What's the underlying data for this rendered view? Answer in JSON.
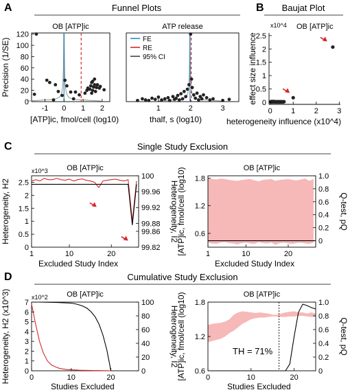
{
  "figure": {
    "panels": [
      {
        "letter": "A",
        "title": "Funnel Plots"
      },
      {
        "letter": "B",
        "title": "Baujat Plot"
      },
      {
        "letter": "C",
        "title": "Single Study Exclusion"
      },
      {
        "letter": "D",
        "title": "Cumulative Study Exclusion"
      }
    ]
  },
  "colors": {
    "red": "#d62728",
    "pink": "#f7b8b8",
    "blue": "#2a8fc4",
    "black": "#000000",
    "grey": "#888888"
  },
  "chart_data": [
    {
      "id": "A1",
      "type": "scatter",
      "title": "OB [ATP]ic",
      "xlabel": "[ATP]ic, fmol/cell (log10)",
      "ylabel": "Precision (1/SE)",
      "xlim": [
        -1.7,
        2.4
      ],
      "ylim": [
        0,
        122
      ],
      "xticks": [
        -1,
        0,
        1,
        2
      ],
      "yticks": [
        0,
        20,
        40,
        60,
        80,
        100,
        120
      ],
      "fe": 0.0,
      "re": 0.9,
      "points": [
        [
          -1.45,
          120
        ],
        [
          -1.55,
          13
        ],
        [
          -0.9,
          38
        ],
        [
          -0.75,
          34
        ],
        [
          -0.45,
          30
        ],
        [
          -0.3,
          18
        ],
        [
          -0.1,
          11
        ],
        [
          0.15,
          28
        ],
        [
          0.05,
          38
        ],
        [
          0.35,
          17
        ],
        [
          -0.55,
          3
        ],
        [
          0.5,
          5
        ],
        [
          0.8,
          12
        ],
        [
          1.1,
          15
        ],
        [
          1.2,
          20
        ],
        [
          1.25,
          24
        ],
        [
          1.35,
          22
        ],
        [
          1.4,
          28
        ],
        [
          1.45,
          34
        ],
        [
          1.5,
          36
        ],
        [
          1.5,
          20
        ],
        [
          1.55,
          26
        ],
        [
          1.6,
          30
        ],
        [
          1.6,
          40
        ],
        [
          1.65,
          18
        ],
        [
          1.7,
          25
        ],
        [
          1.75,
          30
        ],
        [
          1.85,
          24
        ],
        [
          1.9,
          27
        ],
        [
          2.1,
          21
        ],
        [
          1.45,
          15
        ],
        [
          0.6,
          17
        ]
      ]
    },
    {
      "id": "A2",
      "type": "scatter",
      "title": "ATP release",
      "xlabel": "thalf, s (log10)",
      "legend": [
        "FE",
        "RE",
        "95% CI"
      ],
      "xlim": [
        0,
        3.5
      ],
      "ylim": [
        0,
        122
      ],
      "xticks": [
        1,
        2,
        3
      ],
      "fe": 1.98,
      "re": 2.02,
      "points": [
        [
          0.35,
          2
        ],
        [
          0.5,
          5
        ],
        [
          0.6,
          3
        ],
        [
          0.7,
          2
        ],
        [
          0.8,
          6
        ],
        [
          0.9,
          4
        ],
        [
          1.0,
          8
        ],
        [
          1.1,
          3
        ],
        [
          1.2,
          5
        ],
        [
          1.3,
          7
        ],
        [
          1.35,
          2
        ],
        [
          1.45,
          9
        ],
        [
          1.5,
          4
        ],
        [
          1.55,
          6
        ],
        [
          1.6,
          11
        ],
        [
          1.65,
          3
        ],
        [
          1.7,
          14
        ],
        [
          1.75,
          5
        ],
        [
          1.8,
          18
        ],
        [
          1.85,
          9
        ],
        [
          1.9,
          22
        ],
        [
          1.95,
          30
        ],
        [
          2.0,
          120
        ],
        [
          2.03,
          40
        ],
        [
          2.05,
          25
        ],
        [
          2.1,
          12
        ],
        [
          2.15,
          6
        ],
        [
          2.2,
          15
        ],
        [
          2.25,
          3
        ],
        [
          2.3,
          9
        ],
        [
          2.35,
          5
        ],
        [
          2.4,
          12
        ],
        [
          2.5,
          7
        ],
        [
          2.6,
          3
        ],
        [
          2.7,
          5
        ],
        [
          3.0,
          2
        ],
        [
          3.2,
          4
        ]
      ]
    },
    {
      "id": "B",
      "type": "scatter",
      "title": "OB [ATP]ic",
      "xlabel": "heterogeneity influence (x10^4)",
      "ylabel": "effect size influence",
      "exponent": "x10^4",
      "xlim": [
        -0.05,
        3.05
      ],
      "ylim": [
        -0.08,
        2.6
      ],
      "xticks": [
        0,
        1,
        2,
        3
      ],
      "yticks": [
        0,
        0.5,
        1,
        1.5,
        2,
        2.5
      ],
      "points": [
        [
          0.02,
          0.02
        ],
        [
          0.05,
          0.01
        ],
        [
          0.08,
          0.03
        ],
        [
          0.1,
          0.01
        ],
        [
          0.13,
          0.02
        ],
        [
          0.16,
          0.03
        ],
        [
          0.19,
          0.01
        ],
        [
          0.22,
          0.02
        ],
        [
          0.25,
          0.01
        ],
        [
          0.28,
          0.02
        ],
        [
          0.31,
          0.01
        ],
        [
          0.34,
          0.02
        ],
        [
          0.37,
          0.01
        ],
        [
          0.4,
          0.02
        ],
        [
          0.43,
          0.01
        ],
        [
          0.46,
          0.02
        ],
        [
          0.49,
          0.01
        ],
        [
          0.52,
          0.02
        ],
        [
          0.55,
          0.01
        ],
        [
          0.6,
          0.02
        ],
        [
          1.0,
          0.17
        ],
        [
          2.72,
          2.07
        ]
      ],
      "arrows": [
        [
          0.85,
          0.35
        ],
        [
          2.48,
          2.28
        ]
      ]
    },
    {
      "id": "C1",
      "type": "line",
      "title": "OB [ATP]ic",
      "xlabel": "Excluded Study Index",
      "ylabel": "Heterogeneity, H2",
      "ylabel_right": "Heterogeneity, I2",
      "exponent": "x10^3",
      "xlim": [
        1,
        26.5
      ],
      "ylim": [
        0,
        2.75
      ],
      "ylim_right": [
        99.82,
        100
      ],
      "xticks": [
        1,
        10,
        20
      ],
      "yticks": [
        0,
        0.5,
        1,
        1.5,
        2,
        2.5
      ],
      "yticks_right": [
        99.82,
        99.86,
        99.88,
        99.92,
        99.96,
        100
      ],
      "ytick_labels_right": [
        "99.82",
        "99.86",
        "99.88",
        "99.92",
        "99.96",
        "100"
      ],
      "x": [
        1,
        2,
        3,
        4,
        5,
        6,
        7,
        8,
        9,
        10,
        11,
        12,
        13,
        14,
        15,
        16,
        17,
        18,
        19,
        20,
        21,
        22,
        23,
        24,
        25,
        26
      ],
      "series": [
        {
          "values": [
            2.55,
            2.6,
            2.55,
            2.65,
            2.6,
            2.6,
            2.65,
            2.6,
            2.58,
            2.62,
            2.55,
            2.6,
            2.63,
            2.58,
            2.55,
            2.5,
            2.3,
            2.55,
            2.58,
            2.6,
            2.62,
            2.58,
            2.55,
            2.6,
            1.0,
            2.55
          ]
        },
        {
          "values": [
            2.42,
            2.42,
            2.42,
            2.42,
            2.42,
            2.42,
            2.42,
            2.42,
            2.42,
            2.42,
            2.42,
            2.42,
            2.42,
            2.42,
            2.42,
            2.42,
            2.42,
            2.42,
            2.42,
            2.42,
            2.42,
            2.42,
            2.42,
            2.42,
            0.85,
            2.42
          ]
        }
      ],
      "arrows": [
        [
          16.5,
          1.55
        ],
        [
          24.0,
          0.25
        ]
      ]
    },
    {
      "id": "C2",
      "type": "area",
      "title": "OB [ATP]ic",
      "xlabel": "Excluded Study Index",
      "ylabel": "[ATP]ic, fmol/cell (log10)",
      "ylabel_right": "Q-test, pQ",
      "xlim": [
        1,
        26.5
      ],
      "ylim": [
        0.3,
        1.85
      ],
      "ylim_right": [
        -0.1,
        1.0
      ],
      "xticks": [
        1,
        10,
        20
      ],
      "yticks": [
        0.6,
        1.2,
        1.8
      ],
      "yticks_right": [
        0,
        0.2,
        0.4,
        0.6,
        0.8,
        1.0
      ],
      "x": [
        1,
        2,
        3,
        4,
        5,
        6,
        7,
        8,
        9,
        10,
        11,
        12,
        13,
        14,
        15,
        16,
        17,
        18,
        19,
        20,
        21,
        22,
        23,
        24,
        25,
        26
      ],
      "band_upper": [
        1.8,
        1.78,
        1.77,
        1.79,
        1.78,
        1.76,
        1.75,
        1.74,
        1.76,
        1.77,
        1.78,
        1.75,
        1.73,
        1.76,
        1.77,
        1.78,
        1.74,
        1.76,
        1.77,
        1.78,
        1.76,
        1.75,
        1.77,
        1.79,
        1.74,
        1.78
      ],
      "band_lower": [
        0.4,
        0.38,
        0.37,
        0.4,
        0.41,
        0.39,
        0.38,
        0.36,
        0.39,
        0.4,
        0.38,
        0.37,
        0.41,
        0.39,
        0.38,
        0.4,
        0.35,
        0.39,
        0.4,
        0.38,
        0.37,
        0.39,
        0.4,
        0.38,
        0.37,
        0.4
      ],
      "q_line": 0.0
    },
    {
      "id": "D1",
      "type": "line",
      "title": "OB [ATP]ic",
      "xlabel": "Studies Excluded",
      "ylabel": "Heterogeneity, H2 (x10^3)",
      "ylabel_right": "Heterogeneity, I2",
      "exponent": "x10^2",
      "xlim": [
        0,
        27
      ],
      "ylim": [
        0,
        7
      ],
      "ylim_right": [
        0,
        100
      ],
      "xticks": [
        0,
        10,
        20
      ],
      "yticks": [
        0,
        1,
        2,
        3,
        4,
        5,
        6,
        7
      ],
      "yticks_right": [
        0,
        20,
        40,
        60,
        80,
        100
      ],
      "series": [
        {
          "name": "",
          "x": [
            0,
            1,
            2,
            3,
            4,
            5,
            6,
            7,
            8,
            9,
            10,
            11,
            12,
            13,
            14,
            15,
            16,
            17,
            18,
            19,
            20
          ],
          "values": [
            6.8,
            4.8,
            3.0,
            1.8,
            1.0,
            0.6,
            0.4,
            0.25,
            0.18,
            0.12,
            0.1,
            0.08,
            0.06,
            0.05,
            0.04,
            0.03,
            0.02,
            0.02,
            0.01,
            0.01,
            0.0
          ]
        },
        {
          "name": "",
          "x": [
            0,
            2,
            4,
            6,
            8,
            10,
            11,
            12,
            13,
            14,
            15,
            16,
            17,
            18,
            19,
            19.5,
            20
          ],
          "values_right": [
            100,
            100,
            99.8,
            99.5,
            99,
            98.5,
            97.5,
            96,
            94,
            91,
            86,
            79,
            68,
            52,
            30,
            15,
            0
          ]
        }
      ]
    },
    {
      "id": "D2",
      "type": "area",
      "title": "OB [ATP]ic",
      "xlabel": "Studies Excluded",
      "ylabel": "[ATP]ic, fmol/cell (log10)",
      "ylabel_right": "Q-test, pQ",
      "annotation": "TH = 71%",
      "xlim": [
        0,
        25
      ],
      "ylim": [
        0.6,
        1.8
      ],
      "ylim_right": [
        0,
        1.0
      ],
      "xticks": [
        0,
        10,
        20
      ],
      "yticks": [
        0.6,
        1.2,
        1.8
      ],
      "yticks_right": [
        0,
        0.2,
        0.4,
        0.6,
        0.8,
        1.0
      ],
      "x_th": 16.5,
      "x": [
        0,
        1,
        2,
        3,
        4,
        5,
        6,
        7,
        8,
        9,
        10,
        11,
        12,
        13,
        14,
        15,
        16,
        17,
        18,
        19,
        20,
        21,
        22,
        23,
        24,
        25
      ],
      "band_upper": [
        1.4,
        1.42,
        1.43,
        1.44,
        1.46,
        1.5,
        1.58,
        1.62,
        1.64,
        1.63,
        1.62,
        1.61,
        1.62,
        1.61,
        1.6,
        1.58,
        1.58,
        1.6,
        1.62,
        1.63,
        1.64,
        1.62,
        1.62,
        1.6,
        1.62,
        1.6
      ],
      "band_lower": [
        1.1,
        1.12,
        1.14,
        1.16,
        1.2,
        1.26,
        1.3,
        1.36,
        1.42,
        1.46,
        1.5,
        1.52,
        1.53,
        1.53,
        1.54,
        1.55,
        1.55,
        1.54,
        1.54,
        1.55,
        1.55,
        1.56,
        1.56,
        1.55,
        1.54,
        1.55
      ],
      "q_x": [
        0,
        5,
        10,
        15,
        16,
        17,
        18,
        19,
        20,
        21,
        22,
        23,
        24,
        25
      ],
      "q_values": [
        0,
        0,
        0,
        0,
        0,
        0,
        0,
        0.1,
        0.5,
        0.85,
        0.97,
        0.95,
        0.92,
        0.9
      ]
    }
  ]
}
